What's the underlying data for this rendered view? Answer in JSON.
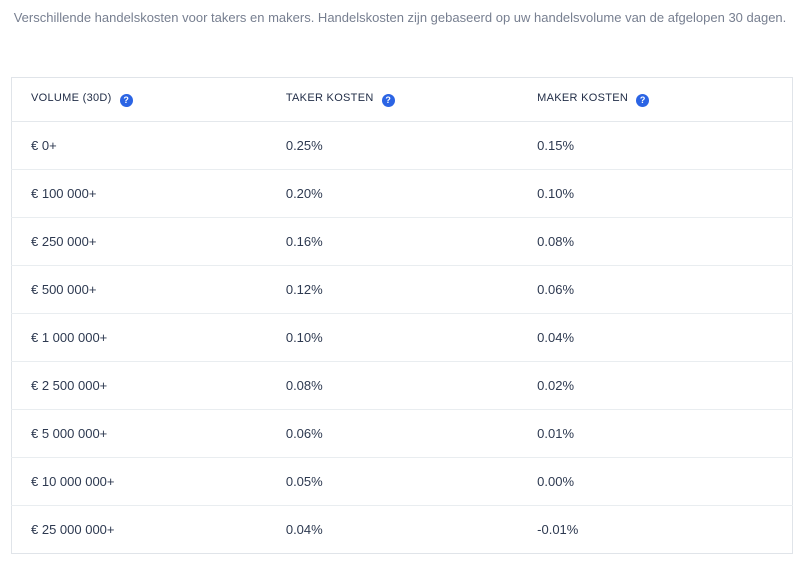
{
  "intro": "Verschillende handelskosten voor takers en makers. Handelskosten zijn gebaseerd op uw handelsvolume van de afgelopen 30 dagen.",
  "icons": {
    "help_glyph": "?"
  },
  "colors": {
    "accent_blue": "#2b64e4",
    "intro_text": "#777f90",
    "header_text": "#1f2b45",
    "cell_text": "#2d3950",
    "table_border": "#e0e4e9",
    "row_divider": "#e9edf0",
    "background": "#ffffff"
  },
  "table": {
    "columns": [
      {
        "label": "VOLUME (30D)"
      },
      {
        "label": "TAKER KOSTEN"
      },
      {
        "label": "MAKER KOSTEN"
      }
    ],
    "rows": [
      {
        "volume": "€ 0+",
        "taker": "0.25%",
        "maker": "0.15%"
      },
      {
        "volume": "€ 100 000+",
        "taker": "0.20%",
        "maker": "0.10%"
      },
      {
        "volume": "€ 250 000+",
        "taker": "0.16%",
        "maker": "0.08%"
      },
      {
        "volume": "€ 500 000+",
        "taker": "0.12%",
        "maker": "0.06%"
      },
      {
        "volume": "€ 1 000 000+",
        "taker": "0.10%",
        "maker": "0.04%"
      },
      {
        "volume": "€ 2 500 000+",
        "taker": "0.08%",
        "maker": "0.02%"
      },
      {
        "volume": "€ 5 000 000+",
        "taker": "0.06%",
        "maker": "0.01%"
      },
      {
        "volume": "€ 10 000 000+",
        "taker": "0.05%",
        "maker": "0.00%"
      },
      {
        "volume": "€ 25 000 000+",
        "taker": "0.04%",
        "maker": "-0.01%"
      }
    ]
  }
}
